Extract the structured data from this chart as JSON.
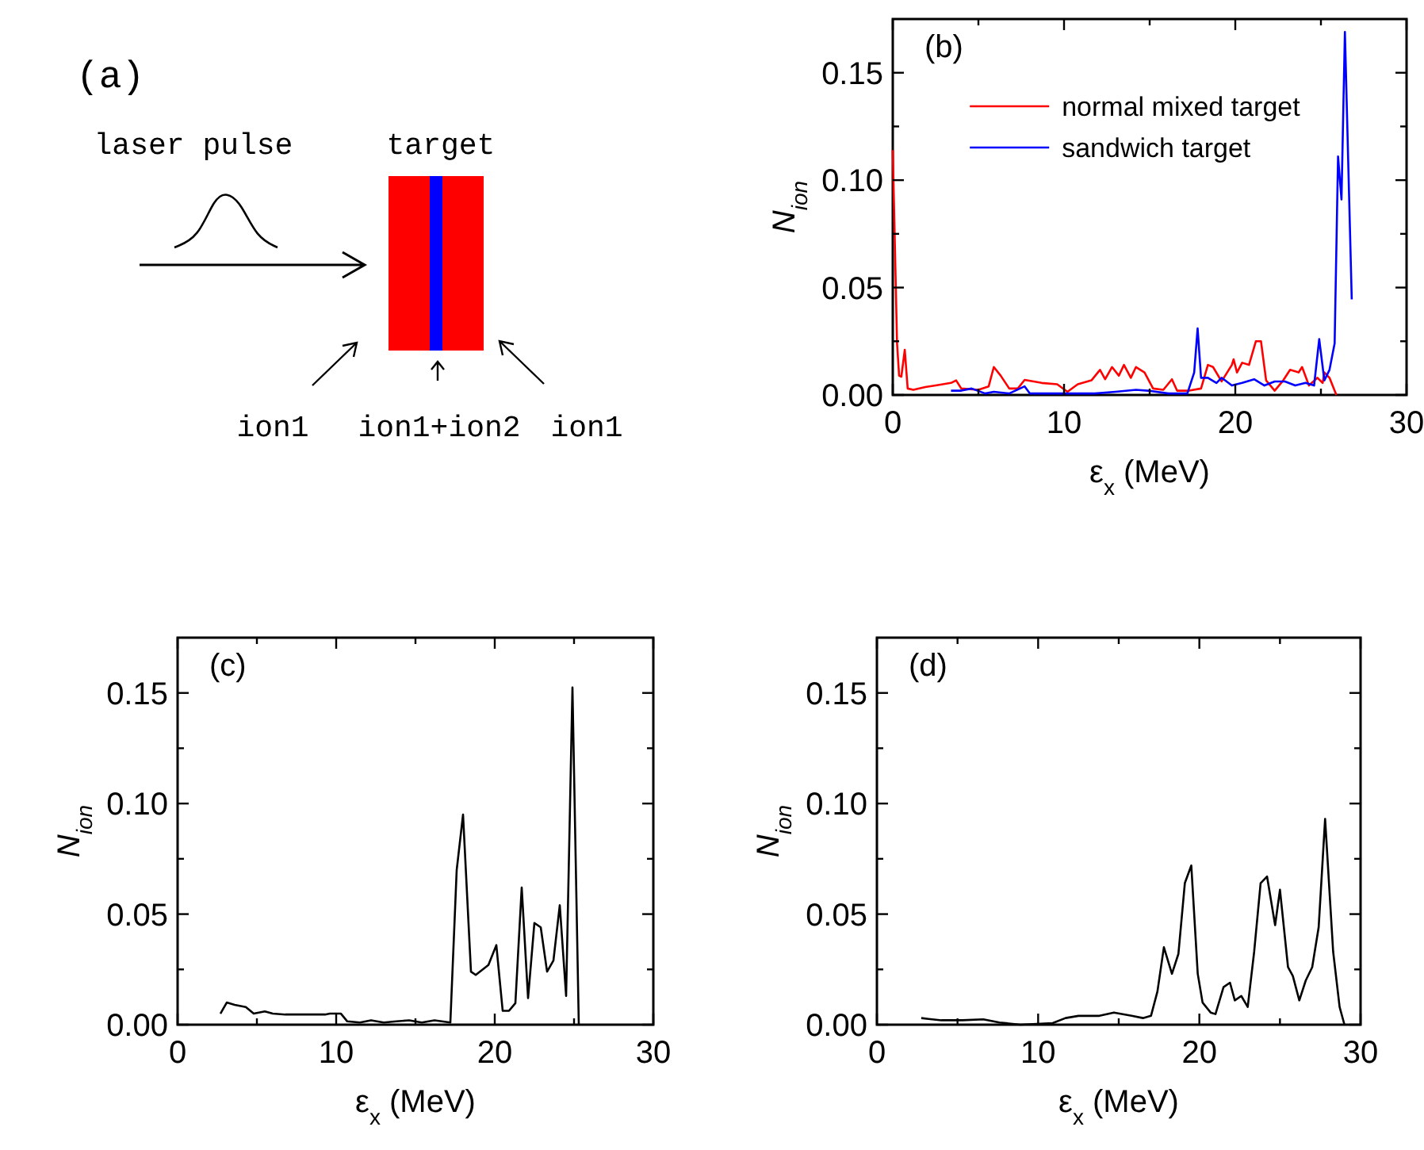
{
  "chart_data": [
    {
      "type": "other",
      "annotations": [
        "(a)",
        "laser pulse",
        "target",
        "ion1",
        "ion1+ion2",
        "ion1"
      ]
    },
    {
      "type": "line",
      "title": "(b)",
      "xlabel": "ε$_{x}$ (MeV)",
      "ylabel": "N$_{ion}$",
      "xlim": [
        0,
        30
      ],
      "ylim": [
        0,
        0.175
      ],
      "xticks": [
        0,
        {
          "value": 5,
          "label": null
        },
        10,
        {
          "value": 15,
          "label": null
        },
        20,
        {
          "value": 25,
          "label": null
        },
        30
      ],
      "yticks": [
        {
          "value": 0,
          "label": "0.00"
        },
        {
          "value": 0.025,
          "label": null
        },
        {
          "value": 0.05,
          "label": "0.05"
        },
        {
          "value": 0.075,
          "label": null
        },
        {
          "value": 0.1,
          "label": "0.10"
        },
        {
          "value": 0.125,
          "label": null
        },
        {
          "value": 0.15,
          "label": "0.15"
        }
      ],
      "legend": "top",
      "grid": false,
      "series": [
        {
          "name": "normal mixed target",
          "color": "#ff0000",
          "x": [
            0,
            0.25,
            0.37,
            0.5,
            0.7,
            0.87,
            1.2,
            1.9,
            2.5,
            3.4,
            3.7,
            4.0,
            5.0,
            5.6,
            5.9,
            6.3,
            6.8,
            7.3,
            7.7,
            8.7,
            9.6,
            10.2,
            10.8,
            11.6,
            12.1,
            12.4,
            12.8,
            13.2,
            13.5,
            13.9,
            14.2,
            14.7,
            15.2,
            15.8,
            16.3,
            16.6,
            17.3,
            18.0,
            18.4,
            18.7,
            19.2,
            19.8,
            19.9,
            20.1,
            20.4,
            20.8,
            21.2,
            21.5,
            21.8,
            22.3,
            22.8,
            23.2,
            23.7,
            23.9,
            24.3,
            24.8,
            25.1,
            25.2,
            25.5,
            25.9
          ],
          "values": [
            0.114,
            0.024,
            0.009,
            0.0085,
            0.021,
            0.003,
            0.0024,
            0.0037,
            0.0044,
            0.0056,
            0.0068,
            0.003,
            0.0024,
            0.004,
            0.013,
            0.009,
            0.003,
            0.003,
            0.007,
            0.0056,
            0.005,
            0.0015,
            0.005,
            0.0068,
            0.0117,
            0.0073,
            0.013,
            0.009,
            0.014,
            0.008,
            0.013,
            0.0105,
            0.003,
            0.0024,
            0.0073,
            0.002,
            0.002,
            0.003,
            0.014,
            0.013,
            0.0063,
            0.014,
            0.0166,
            0.0105,
            0.015,
            0.014,
            0.025,
            0.025,
            0.0068,
            0.002,
            0.0068,
            0.0117,
            0.0105,
            0.013,
            0.0044,
            0.008,
            0.0056,
            0.0105,
            0.008,
            0
          ]
        },
        {
          "name": "sandwich target",
          "color": "#0000ff",
          "x": [
            3.4,
            4.0,
            4.6,
            5.4,
            5.9,
            6.8,
            7.7,
            8.0,
            9.3,
            10.5,
            11.8,
            13.0,
            14.2,
            14.9,
            16.1,
            17.2,
            17.6,
            17.8,
            18.0,
            18.4,
            18.9,
            19.2,
            19.8,
            20.4,
            21.1,
            21.7,
            22.3,
            22.9,
            23.5,
            24.1,
            24.6,
            24.9,
            25.2,
            25.5,
            25.8,
            26.0,
            26.2,
            26.4,
            26.8
          ],
          "values": [
            0.002,
            0.002,
            0.003,
            0.0007,
            0.0015,
            0.0007,
            0.004,
            0.0007,
            0.0007,
            0.0007,
            0.0007,
            0.0015,
            0.0024,
            0.002,
            0.0007,
            0.0007,
            0.0105,
            0.031,
            0.008,
            0.008,
            0.0056,
            0.008,
            0.0044,
            0.0056,
            0.0073,
            0.0044,
            0.0063,
            0.0063,
            0.0044,
            0.0056,
            0.0044,
            0.026,
            0.0068,
            0.0117,
            0.024,
            0.111,
            0.091,
            0.169,
            0.0445
          ]
        }
      ]
    },
    {
      "type": "line",
      "title": "(c)",
      "xlabel": "ε$_{x}$ (MeV)",
      "ylabel": "N$_{ion}$",
      "xlim": [
        0,
        30
      ],
      "ylim": [
        0,
        0.175
      ],
      "xticks": [
        0,
        {
          "value": 5,
          "label": null
        },
        10,
        {
          "value": 15,
          "label": null
        },
        20,
        {
          "value": 25,
          "label": null
        },
        30
      ],
      "yticks": [
        {
          "value": 0,
          "label": "0.00"
        },
        {
          "value": 0.025,
          "label": null
        },
        {
          "value": 0.05,
          "label": "0.05"
        },
        {
          "value": 0.075,
          "label": null
        },
        {
          "value": 0.1,
          "label": "0.10"
        },
        {
          "value": 0.125,
          "label": null
        },
        {
          "value": 0.15,
          "label": "0.15"
        }
      ],
      "grid": false,
      "series": [
        {
          "color": "#000000",
          "x": [
            2.7,
            3.1,
            3.6,
            4.3,
            4.8,
            5.5,
            6.0,
            6.8,
            9.3,
            9.6,
            10.3,
            10.7,
            11.5,
            12.2,
            13.0,
            13.8,
            14.6,
            15.4,
            16.2,
            17.2,
            17.6,
            18.0,
            18.5,
            18.8,
            19.6,
            20.1,
            20.5,
            20.9,
            21.3,
            21.7,
            22.1,
            22.5,
            22.9,
            23.3,
            23.7,
            24.1,
            24.5,
            24.9,
            25.3
          ],
          "values": [
            0.005,
            0.01,
            0.009,
            0.008,
            0.005,
            0.006,
            0.005,
            0.0046,
            0.0046,
            0.005,
            0.005,
            0.0015,
            0.001,
            0.002,
            0.001,
            0.0015,
            0.002,
            0.001,
            0.002,
            0.001,
            0.07,
            0.095,
            0.024,
            0.0225,
            0.027,
            0.036,
            0.0063,
            0.0063,
            0.0097,
            0.062,
            0.012,
            0.046,
            0.044,
            0.024,
            0.029,
            0.054,
            0.013,
            0.1525,
            0
          ]
        }
      ]
    },
    {
      "type": "line",
      "title": "(d)",
      "xlabel": "ε$_{x}$ (MeV)",
      "ylabel": "N$_{ion}$",
      "xlim": [
        0,
        30
      ],
      "ylim": [
        0,
        0.175
      ],
      "xticks": [
        0,
        {
          "value": 5,
          "label": null
        },
        10,
        {
          "value": 15,
          "label": null
        },
        20,
        {
          "value": 25,
          "label": null
        },
        30
      ],
      "yticks": [
        {
          "value": 0,
          "label": "0.00"
        },
        {
          "value": 0.025,
          "label": null
        },
        {
          "value": 0.05,
          "label": "0.05"
        },
        {
          "value": 0.075,
          "label": null
        },
        {
          "value": 0.1,
          "label": "0.10"
        },
        {
          "value": 0.125,
          "label": null
        },
        {
          "value": 0.15,
          "label": "0.15"
        }
      ],
      "grid": false,
      "series": [
        {
          "color": "#000000",
          "x": [
            2.75,
            3.2,
            4.0,
            5.3,
            6.6,
            7.6,
            8.9,
            10.9,
            11.7,
            12.5,
            13.8,
            14.7,
            15.8,
            16.5,
            17.0,
            17.4,
            17.8,
            18.3,
            18.7,
            19.1,
            19.5,
            19.9,
            20.2,
            20.7,
            21.0,
            21.5,
            21.9,
            22.2,
            22.6,
            23.0,
            23.4,
            23.8,
            24.2,
            24.7,
            25.0,
            25.5,
            25.8,
            26.2,
            26.6,
            27.0,
            27.4,
            27.8,
            28.3,
            28.7,
            29.0
          ],
          "values": [
            0.003,
            0.0026,
            0.002,
            0.002,
            0.0024,
            0.001,
            0,
            0.0007,
            0.003,
            0.004,
            0.004,
            0.0055,
            0.004,
            0.003,
            0.004,
            0.015,
            0.035,
            0.023,
            0.032,
            0.064,
            0.072,
            0.023,
            0.01,
            0.0055,
            0.0048,
            0.017,
            0.019,
            0.011,
            0.013,
            0.008,
            0.033,
            0.064,
            0.067,
            0.045,
            0.061,
            0.026,
            0.022,
            0.011,
            0.02,
            0.026,
            0.044,
            0.093,
            0.033,
            0.008,
            0
          ]
        }
      ]
    }
  ]
}
